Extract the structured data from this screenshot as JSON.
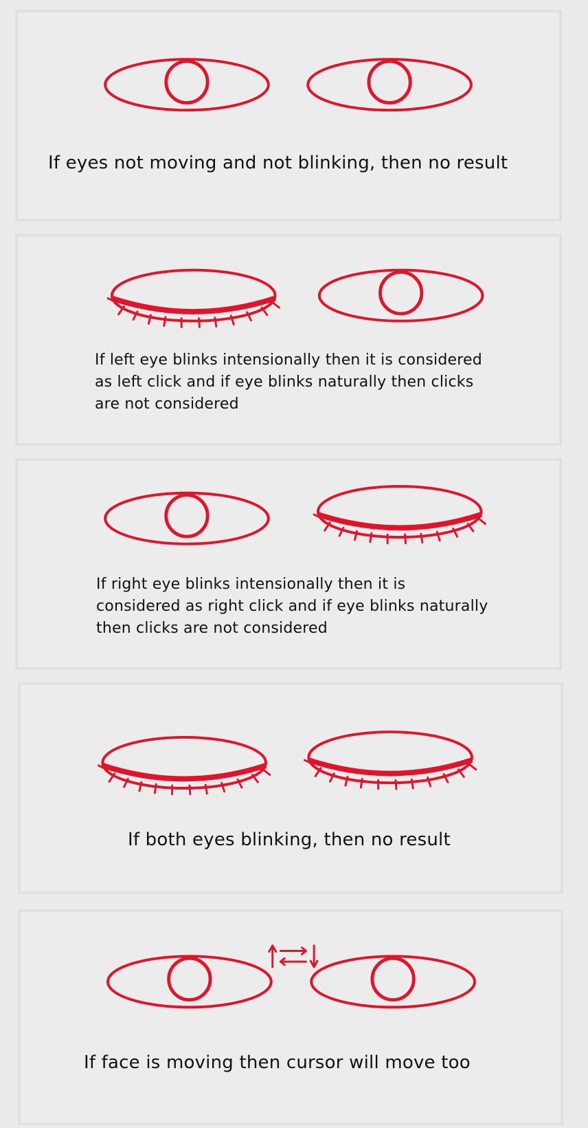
{
  "palette": {
    "ink": "#e0142a",
    "text": "#111111",
    "panel_bg": "#ececec",
    "panel_border": "#e0e0e0"
  },
  "panels": [
    {
      "id": "eyes-open",
      "left_eye": "open",
      "right_eye": "open",
      "caption_lines": [
        "If eyes not moving and not blinking, then no result"
      ]
    },
    {
      "id": "left-eye-blink",
      "left_eye": "closed",
      "right_eye": "open",
      "caption_lines": [
        "If left eye blinks intensionally then it is considered",
        "as left click and if eye blinks naturally then clicks",
        "are not considered"
      ]
    },
    {
      "id": "right-eye-blink",
      "left_eye": "open",
      "right_eye": "closed",
      "caption_lines": [
        "If right eye blinks intensionally then it is",
        "considered as right click and if eye blinks naturally",
        "then clicks are not considered"
      ]
    },
    {
      "id": "both-eyes-blink",
      "left_eye": "closed",
      "right_eye": "closed",
      "caption_lines": [
        "If both eyes blinking, then no result"
      ]
    },
    {
      "id": "face-moving",
      "left_eye": "open",
      "right_eye": "open",
      "movement_icon": "swap-arrows-icon",
      "caption_lines": [
        "If face is moving then cursor will move too"
      ]
    }
  ]
}
